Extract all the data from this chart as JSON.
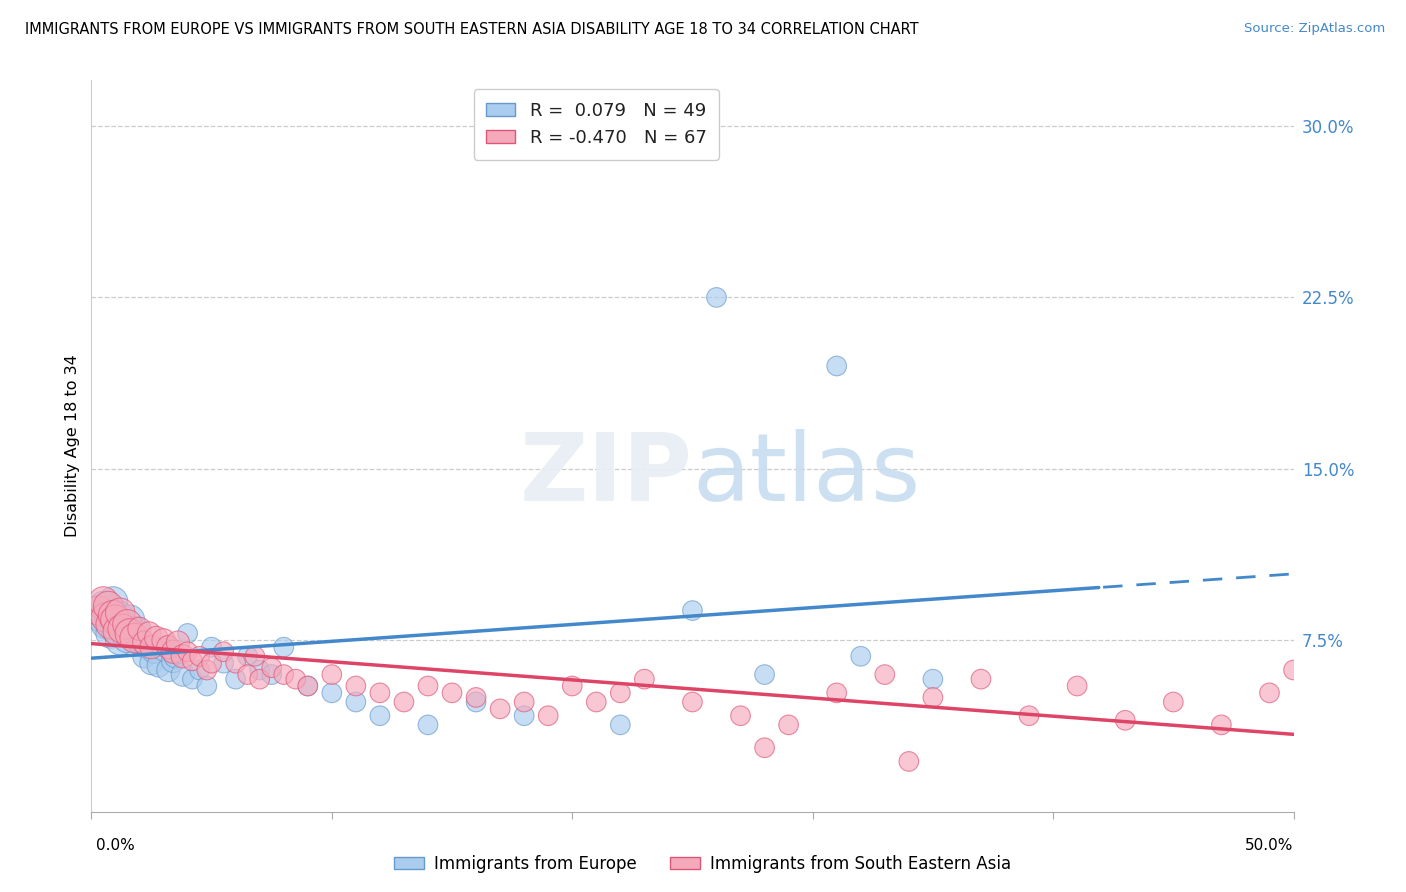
{
  "title": "IMMIGRANTS FROM EUROPE VS IMMIGRANTS FROM SOUTH EASTERN ASIA DISABILITY AGE 18 TO 34 CORRELATION CHART",
  "source": "Source: ZipAtlas.com",
  "ylabel": "Disability Age 18 to 34",
  "xlim": [
    0.0,
    0.5
  ],
  "ylim": [
    0.0,
    0.32
  ],
  "yticks": [
    0.075,
    0.15,
    0.225,
    0.3
  ],
  "ytick_labels": [
    "7.5%",
    "15.0%",
    "22.5%",
    "30.0%"
  ],
  "r_europe": "0.079",
  "n_europe": 49,
  "r_sea": "-0.470",
  "n_sea": 67,
  "color_europe": "#aaccee",
  "color_sea": "#f5aabc",
  "edge_europe": "#6699cc",
  "edge_sea": "#dd5577",
  "trendline_europe": "#4488cc",
  "trendline_sea": "#dd4466",
  "legend_label_europe": "Immigrants from Europe",
  "legend_label_sea": "Immigrants from South Eastern Asia",
  "blue_x": [
    0.004,
    0.005,
    0.006,
    0.007,
    0.008,
    0.009,
    0.01,
    0.011,
    0.012,
    0.013,
    0.015,
    0.016,
    0.018,
    0.02,
    0.022,
    0.023,
    0.025,
    0.026,
    0.028,
    0.03,
    0.032,
    0.034,
    0.035,
    0.038,
    0.04,
    0.042,
    0.045,
    0.048,
    0.05,
    0.055,
    0.06,
    0.065,
    0.07,
    0.075,
    0.08,
    0.09,
    0.1,
    0.11,
    0.12,
    0.14,
    0.16,
    0.18,
    0.22,
    0.25,
    0.28,
    0.32,
    0.35,
    0.26,
    0.31
  ],
  "blue_y": [
    0.085,
    0.09,
    0.082,
    0.088,
    0.078,
    0.092,
    0.08,
    0.086,
    0.075,
    0.082,
    0.076,
    0.084,
    0.079,
    0.074,
    0.068,
    0.072,
    0.065,
    0.07,
    0.064,
    0.071,
    0.062,
    0.066,
    0.068,
    0.06,
    0.078,
    0.058,
    0.062,
    0.055,
    0.072,
    0.065,
    0.058,
    0.068,
    0.062,
    0.06,
    0.072,
    0.055,
    0.052,
    0.048,
    0.042,
    0.038,
    0.048,
    0.042,
    0.038,
    0.088,
    0.06,
    0.068,
    0.058,
    0.225,
    0.195
  ],
  "pink_x": [
    0.003,
    0.005,
    0.006,
    0.007,
    0.008,
    0.009,
    0.01,
    0.011,
    0.012,
    0.013,
    0.015,
    0.016,
    0.018,
    0.02,
    0.022,
    0.024,
    0.025,
    0.027,
    0.03,
    0.032,
    0.034,
    0.036,
    0.038,
    0.04,
    0.042,
    0.045,
    0.048,
    0.05,
    0.055,
    0.06,
    0.065,
    0.068,
    0.07,
    0.075,
    0.08,
    0.085,
    0.09,
    0.1,
    0.11,
    0.12,
    0.13,
    0.14,
    0.15,
    0.16,
    0.17,
    0.18,
    0.19,
    0.2,
    0.21,
    0.22,
    0.23,
    0.25,
    0.27,
    0.29,
    0.31,
    0.33,
    0.35,
    0.37,
    0.39,
    0.41,
    0.43,
    0.45,
    0.47,
    0.49,
    0.5,
    0.28,
    0.34
  ],
  "pink_y": [
    0.088,
    0.092,
    0.085,
    0.09,
    0.082,
    0.086,
    0.084,
    0.079,
    0.087,
    0.08,
    0.082,
    0.078,
    0.076,
    0.08,
    0.074,
    0.078,
    0.072,
    0.076,
    0.075,
    0.072,
    0.07,
    0.074,
    0.068,
    0.07,
    0.066,
    0.068,
    0.062,
    0.065,
    0.07,
    0.065,
    0.06,
    0.068,
    0.058,
    0.063,
    0.06,
    0.058,
    0.055,
    0.06,
    0.055,
    0.052,
    0.048,
    0.055,
    0.052,
    0.05,
    0.045,
    0.048,
    0.042,
    0.055,
    0.048,
    0.052,
    0.058,
    0.048,
    0.042,
    0.038,
    0.052,
    0.06,
    0.05,
    0.058,
    0.042,
    0.055,
    0.04,
    0.048,
    0.038,
    0.052,
    0.062,
    0.028,
    0.022
  ]
}
